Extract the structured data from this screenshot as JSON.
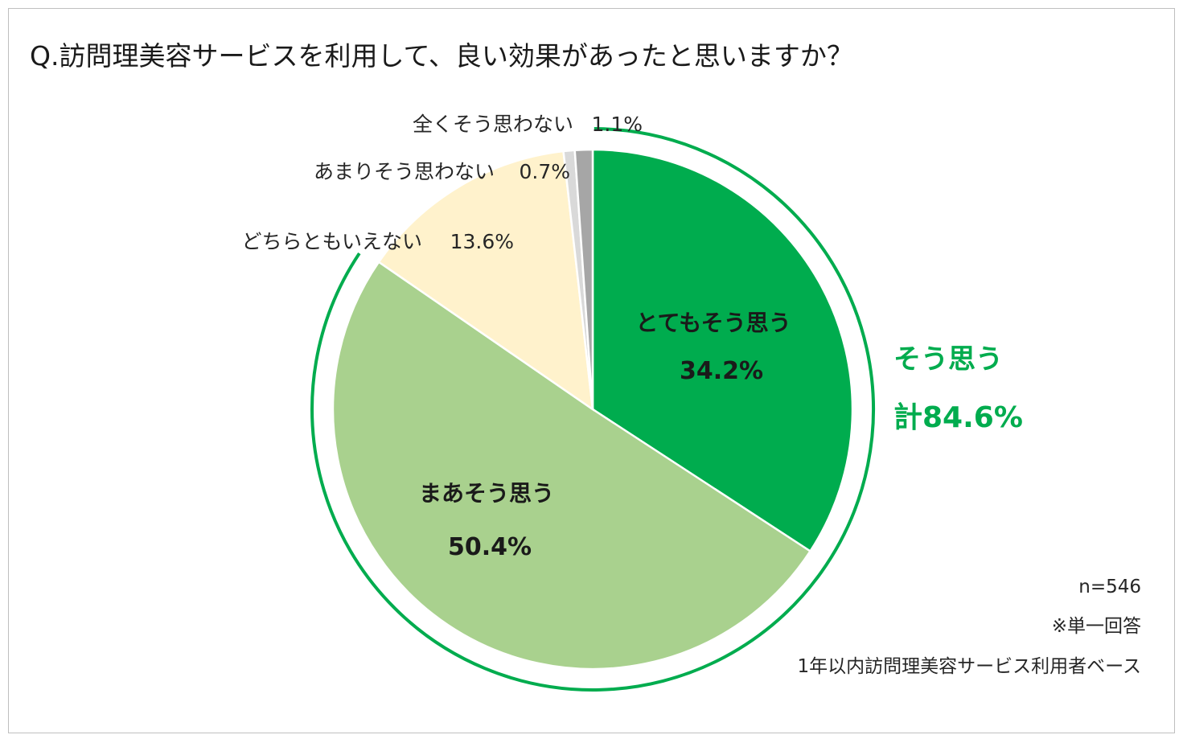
{
  "chart_data": {
    "type": "pie",
    "title": "Q.訪問理美容サービスを利用して、良い効果があったと思いますか？",
    "slices": [
      {
        "label": "とてもそう思う",
        "value": 34.2,
        "value_label": "34.2%",
        "color": "#00ac4e",
        "label_color": "#1a1a1a"
      },
      {
        "label": "まあそう思う",
        "value": 50.4,
        "value_label": "50.4%",
        "color": "#a9d18e",
        "label_color": "#1a1a1a"
      },
      {
        "label": "どちらともいえない",
        "value": 13.6,
        "value_label": "13.6%",
        "color": "#fff2cc",
        "label_color": "#262626"
      },
      {
        "label": "あまりそう思わない",
        "value": 0.7,
        "value_label": "0.7%",
        "color": "#d9d9d9",
        "label_color": "#262626"
      },
      {
        "label": "全くそう思わない",
        "value": 1.1,
        "value_label": "1.1%",
        "color": "#a6a6a6",
        "label_color": "#262626"
      }
    ],
    "group_annotation": {
      "line1": "そう思う",
      "line2": "計84.6%",
      "color": "#00ac4e",
      "covers_slices": [
        0,
        1
      ]
    },
    "notes": [
      "n=546",
      "※単一回答",
      "1年以内訪問理美容サービス利用者ベース"
    ]
  }
}
